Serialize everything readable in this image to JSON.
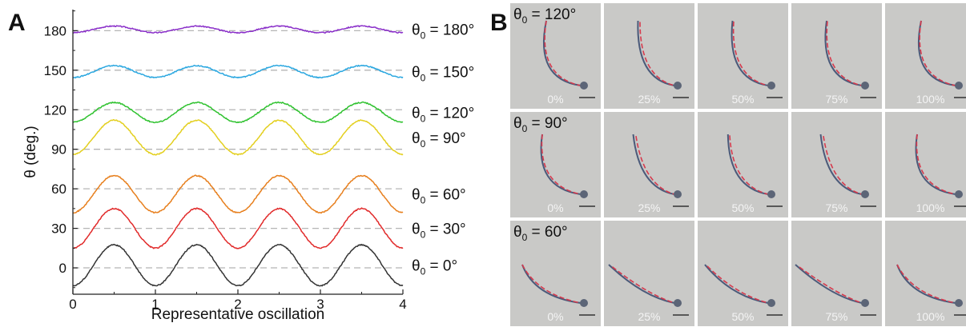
{
  "panel_a_letter": "A",
  "panel_b_letter": "B",
  "chart_data": {
    "type": "line",
    "xlabel": "Representative oscillation",
    "ylabel": "θ (deg.)",
    "xlim": [
      0,
      4
    ],
    "ylim": [
      -20,
      196
    ],
    "xticks": [
      "0",
      "1",
      "2",
      "3",
      "4"
    ],
    "yticks": [
      "0",
      "30",
      "60",
      "90",
      "120",
      "150",
      "180"
    ],
    "reference_lines": [
      0,
      30,
      60,
      90,
      120,
      150,
      180
    ],
    "series": [
      {
        "name": "θ0 = 180°",
        "color": "#8a2fc9",
        "mean": 181,
        "amplitude": 2.5,
        "phase_offset": 0.25
      },
      {
        "name": "θ0 = 150°",
        "color": "#2aa7e0",
        "mean": 149,
        "amplitude": 4.5,
        "phase_offset": 0.25
      },
      {
        "name": "θ0 = 120°",
        "color": "#2fc22f",
        "mean": 118,
        "amplitude": 7.5,
        "phase_offset": 0.25
      },
      {
        "name": "θ0 = 90°",
        "color": "#e3cf1e",
        "mean": 99,
        "amplitude": 13,
        "phase_offset": 0.25
      },
      {
        "name": "θ0 = 60°",
        "color": "#e77f1d",
        "mean": 56,
        "amplitude": 14,
        "phase_offset": 0.25
      },
      {
        "name": "θ0 = 30°",
        "color": "#e12a2a",
        "mean": 30,
        "amplitude": 15,
        "phase_offset": 0.25
      },
      {
        "name": "θ0 = 0°",
        "color": "#333333",
        "mean": 2,
        "amplitude": 15.5,
        "phase_offset": 0.25
      }
    ]
  },
  "panel_b": {
    "rows": [
      {
        "label_prefix": "θ",
        "label_sub": "0",
        "label_suffix": " = 120°"
      },
      {
        "label_prefix": "θ",
        "label_sub": "0",
        "label_suffix": " = 90°"
      },
      {
        "label_prefix": "θ",
        "label_sub": "0",
        "label_suffix": " = 60°"
      }
    ],
    "phases": [
      "0%",
      "25%",
      "50%",
      "75%",
      "100%"
    ]
  }
}
